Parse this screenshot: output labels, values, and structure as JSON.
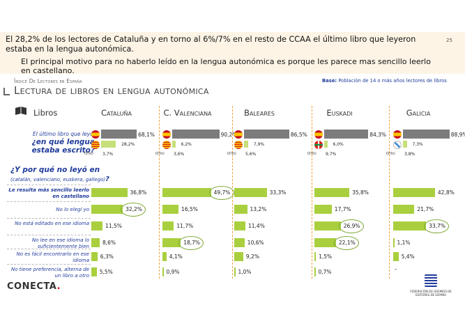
{
  "header": {
    "headline": "El 28,2% de los lectores de Cataluña y en torno al 6%/7% en el resto de CCAA el último libro que leyeron estaba en la lengua autonómica.",
    "subline": "El principal motivo para no haberlo leído en la lengua autonómica es porque les parece mas sencillo leerlo en castellano.",
    "page_number": "25"
  },
  "section_label": "Índice De Lectores en España",
  "base_label": "Base:",
  "base_text": "Población de 14 o más años lectores de libros",
  "title": "Lectura de libros en lengua autonómica",
  "libros_label": "Libros",
  "regions": [
    {
      "name": "Cataluña",
      "flag": "flag-cat"
    },
    {
      "name": "C. Valenciana",
      "flag": "flag-cat"
    },
    {
      "name": "Baleares",
      "flag": "flag-bal"
    },
    {
      "name": "Euskadi",
      "flag": "flag-eus"
    },
    {
      "name": "Galicia",
      "flag": "flag-gal"
    }
  ],
  "question1": {
    "lead": "El último libro que leyó,",
    "main": "¿en qué lengua estaba escrito?"
  },
  "otro_label": "Otro",
  "language": [
    {
      "castellano": 68.1,
      "castellano_label": "68,1%",
      "autonomica": 28.2,
      "autonomica_label": "28,2%",
      "otro_label": "3,7%"
    },
    {
      "castellano": 90.2,
      "castellano_label": "90,2%",
      "autonomica": 6.2,
      "autonomica_label": "6,2%",
      "otro_label": "3,6%"
    },
    {
      "castellano": 86.5,
      "castellano_label": "86,5%",
      "autonomica": 7.9,
      "autonomica_label": "7,9%",
      "otro_label": "5,6%"
    },
    {
      "castellano": 84.3,
      "castellano_label": "84,3%",
      "autonomica": 6.0,
      "autonomica_label": "6,0%",
      "otro_label": "9,7%"
    },
    {
      "castellano": 88.9,
      "castellano_label": "88,9%",
      "autonomica": 7.3,
      "autonomica_label": "7,3%",
      "otro_label": "3,8%"
    }
  ],
  "question2": {
    "main": "¿Y por qué no leyó en",
    "sub": "(catalán, valenciano, euskera, gallego)",
    "end": "?"
  },
  "reasons": [
    {
      "label": "Le resulta más sencillo leerlo en castellano",
      "bold": true
    },
    {
      "label": "No lo elegí yo",
      "bold": false
    },
    {
      "label": "No está editado en ese idioma",
      "bold": false
    },
    {
      "label": "No lee en ese idioma lo suficientemente bien",
      "bold": false
    },
    {
      "label": "No es fácil encontrarlo en ese idioma",
      "bold": false
    },
    {
      "label": "No tiene preferencia, alterna de un libro a otro",
      "bold": false
    }
  ],
  "reason_values": [
    [
      {
        "v": 36.8,
        "t": "36,8%"
      },
      {
        "v": 32.2,
        "t": "32,2%",
        "ring": true
      },
      {
        "v": 11.5,
        "t": "11,5%"
      },
      {
        "v": 8.6,
        "t": "8,6%"
      },
      {
        "v": 6.3,
        "t": "6,3%"
      },
      {
        "v": 5.5,
        "t": "5,5%"
      }
    ],
    [
      {
        "v": 49.7,
        "t": "49,7%",
        "ring": true
      },
      {
        "v": 16.5,
        "t": "16,5%"
      },
      {
        "v": 11.7,
        "t": "11,7%"
      },
      {
        "v": 18.7,
        "t": "18,7%",
        "ring": true
      },
      {
        "v": 4.1,
        "t": "4,1%"
      },
      {
        "v": 0.9,
        "t": "0,9%"
      }
    ],
    [
      {
        "v": 33.3,
        "t": "33,3%"
      },
      {
        "v": 13.2,
        "t": "13,2%"
      },
      {
        "v": 11.4,
        "t": "11,4%"
      },
      {
        "v": 10.6,
        "t": "10,6%"
      },
      {
        "v": 9.2,
        "t": "9,2%"
      },
      {
        "v": 1.0,
        "t": "1,0%"
      }
    ],
    [
      {
        "v": 35.8,
        "t": "35,8%"
      },
      {
        "v": 17.7,
        "t": "17,7%"
      },
      {
        "v": 26.9,
        "t": "26,9%",
        "ring": true
      },
      {
        "v": 22.1,
        "t": "22,1%",
        "ring": true
      },
      {
        "v": 1.5,
        "t": "1,5%"
      },
      {
        "v": 0.7,
        "t": "0,7%"
      }
    ],
    [
      {
        "v": 42.8,
        "t": "42,8%"
      },
      {
        "v": 21.7,
        "t": "21,7%"
      },
      {
        "v": 33.7,
        "t": "33,7%",
        "ring": true
      },
      {
        "v": 1.1,
        "t": "1,1%"
      },
      {
        "v": 5.4,
        "t": "5,4%"
      },
      {
        "v": null,
        "t": "-"
      }
    ]
  ],
  "footer": {
    "logo": "CONECTA",
    "logo_dot": ".",
    "fed_text": "FEDERACIÓN DE GREMIOS DE EDITORES DE ESPAÑA"
  },
  "colors": {
    "castellano": "#7c7c7c",
    "autonomica": "#c7df7a",
    "reason": "#a9cf3f",
    "separator": "#f2a13a",
    "label": "#1f3b9b"
  }
}
